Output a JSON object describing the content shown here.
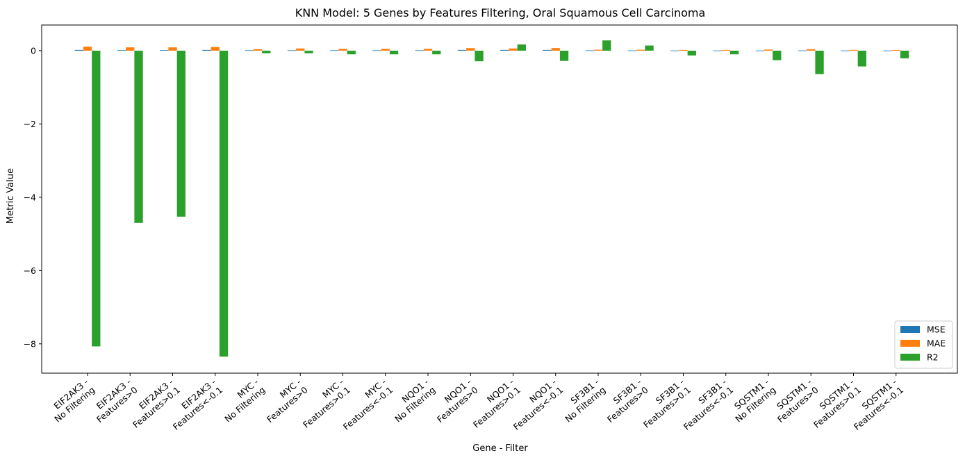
{
  "chart_data": {
    "type": "bar",
    "title": "KNN Model: 5 Genes by Features Filtering, Oral Squamous Cell Carcinoma",
    "xlabel": "Gene - Filter",
    "ylabel": "Metric Value",
    "ylim": [
      -8.8,
      0.7
    ],
    "yticks": [
      0,
      -2,
      -4,
      -6,
      -8
    ],
    "grid": false,
    "legend_position": "bottom-right",
    "categories": [
      [
        "EIF2AK3 -",
        "No Filtering"
      ],
      [
        "EIF2AK3 -",
        "Features>0"
      ],
      [
        "EIF2AK3 -",
        "Features>0.1"
      ],
      [
        "EIF2AK3 -",
        "Features<-0.1"
      ],
      [
        "MYC -",
        "No Filtering"
      ],
      [
        "MYC -",
        "Features>0"
      ],
      [
        "MYC -",
        "Features>0.1"
      ],
      [
        "MYC -",
        "Features<-0.1"
      ],
      [
        "NQO1 -",
        "No Filtering"
      ],
      [
        "NQO1 -",
        "Features>0"
      ],
      [
        "NQO1 -",
        "Features>0.1"
      ],
      [
        "NQO1 -",
        "Features<-0.1"
      ],
      [
        "SF3B1 -",
        "No Filtering"
      ],
      [
        "SF3B1 -",
        "Features>0"
      ],
      [
        "SF3B1 -",
        "Features>0.1"
      ],
      [
        "SF3B1 -",
        "Features<-0.1"
      ],
      [
        "SQSTM1 -",
        "No Filtering"
      ],
      [
        "SQSTM1 -",
        "Features>0"
      ],
      [
        "SQSTM1 -",
        "Features>0.1"
      ],
      [
        "SQSTM1 -",
        "Features<-0.1"
      ]
    ],
    "series": [
      {
        "name": "MSE",
        "color": "#1f77b4",
        "values": [
          0.02,
          0.015,
          0.015,
          0.02,
          0.01,
          0.01,
          0.01,
          0.01,
          0.01,
          0.02,
          0.02,
          0.02,
          0.008,
          0.006,
          0.004,
          0.004,
          0.004,
          0.006,
          0.004,
          0.004
        ]
      },
      {
        "name": "MAE",
        "color": "#ff7f0e",
        "values": [
          0.11,
          0.09,
          0.09,
          0.1,
          0.04,
          0.06,
          0.05,
          0.05,
          0.05,
          0.07,
          0.06,
          0.07,
          0.025,
          0.025,
          0.02,
          0.02,
          0.03,
          0.04,
          0.02,
          0.02
        ]
      },
      {
        "name": "R2",
        "color": "#2ca02c",
        "values": [
          -8.07,
          -4.7,
          -4.53,
          -8.35,
          -0.07,
          -0.07,
          -0.1,
          -0.1,
          -0.1,
          -0.29,
          0.17,
          -0.28,
          0.28,
          0.14,
          -0.13,
          -0.1,
          -0.26,
          -0.64,
          -0.43,
          -0.21
        ]
      }
    ]
  }
}
